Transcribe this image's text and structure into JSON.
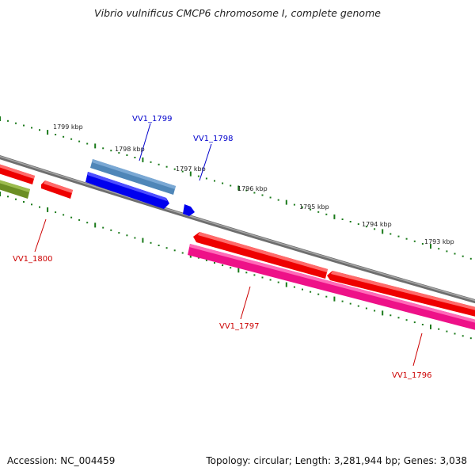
{
  "title": "Vibrio vulnificus CMCP6 chromosome I, complete genome",
  "footer": {
    "accession": "Accession: NC_004459",
    "summary": "Topology: circular; Length: 3,281,944 bp; Genes: 3,038"
  },
  "ruler": [
    "1799 kbp",
    "1798 kbp",
    "1797 kbp",
    "1796 kbp",
    "1795 kbp",
    "1794 kbp",
    "1793 kbp"
  ],
  "genes": [
    {
      "label": "VV1_1799",
      "color": "#0000cc"
    },
    {
      "label": "VV1_1798",
      "color": "#0000cc"
    },
    {
      "label": "VV1_1800",
      "color": "#cc0000"
    },
    {
      "label": "VV1_1797",
      "color": "#cc0000"
    },
    {
      "label": "VV1_1796",
      "color": "#cc0000"
    }
  ],
  "colors": {
    "backbone": "#888888",
    "ticks": "#1a7a1a",
    "steelblue_feature": "#4f86b8",
    "blue_feature": "#0000ee",
    "red_feature": "#ee0000",
    "green_feature": "#6b8e23",
    "pink_feature": "#ee1188"
  }
}
